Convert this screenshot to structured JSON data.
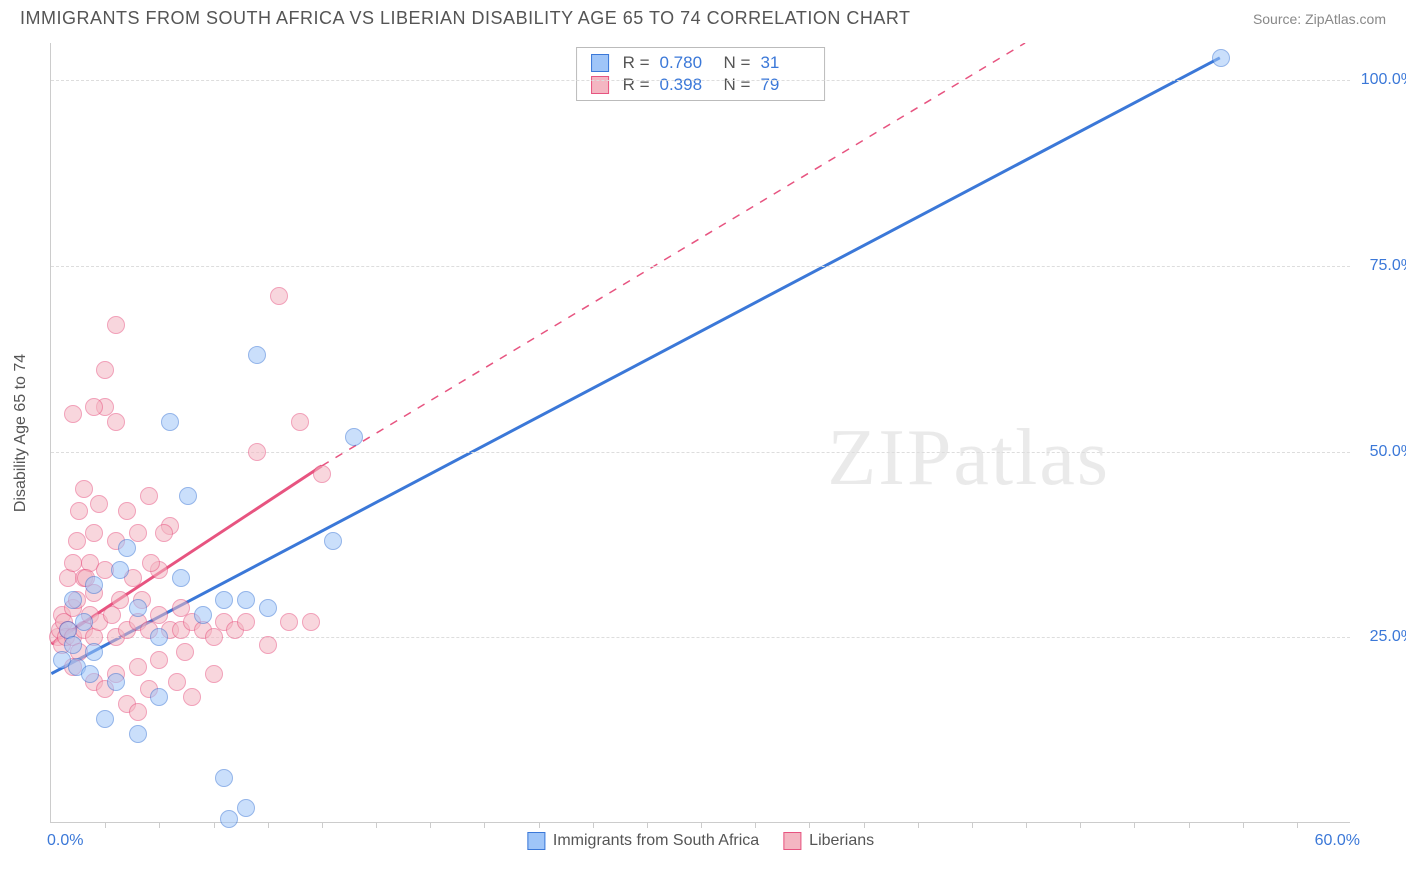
{
  "header": {
    "title": "IMMIGRANTS FROM SOUTH AFRICA VS LIBERIAN DISABILITY AGE 65 TO 74 CORRELATION CHART",
    "source": "Source: ZipAtlas.com"
  },
  "watermark": {
    "part1": "ZIP",
    "part2": "atlas"
  },
  "chart": {
    "type": "scatter",
    "y_axis_title": "Disability Age 65 to 74",
    "x_range": [
      0,
      60
    ],
    "y_range": [
      0,
      105
    ],
    "x_ticks_minor_step": 2.5,
    "y_grid": [
      25,
      50,
      75,
      100
    ],
    "y_tick_labels": [
      "25.0%",
      "50.0%",
      "75.0%",
      "100.0%"
    ],
    "x_origin_label": "0.0%",
    "x_max_label": "60.0%",
    "axis_label_color": "#3b78d8",
    "grid_color": "#dddddd",
    "axis_color": "#cccccc",
    "background_color": "#ffffff",
    "marker_radius": 9,
    "marker_opacity": 0.55,
    "marker_stroke_opacity": 0.9,
    "series": [
      {
        "name": "Immigrants from South Africa",
        "color_fill": "#9fc5f8",
        "color_stroke": "#3b78d8",
        "R": "0.780",
        "N": "31",
        "trend": {
          "x1": 0,
          "y1": 20,
          "x2": 54,
          "y2": 103,
          "dashed": false,
          "width": 3
        },
        "points": [
          [
            0.5,
            22
          ],
          [
            0.8,
            26
          ],
          [
            1,
            30
          ],
          [
            1,
            24
          ],
          [
            1.2,
            21
          ],
          [
            1.5,
            27
          ],
          [
            1.8,
            20
          ],
          [
            2,
            32
          ],
          [
            2,
            23
          ],
          [
            2.5,
            14
          ],
          [
            3,
            19
          ],
          [
            3.2,
            34
          ],
          [
            3.5,
            37
          ],
          [
            4,
            12
          ],
          [
            4,
            29
          ],
          [
            5,
            25
          ],
          [
            5,
            17
          ],
          [
            5.5,
            54
          ],
          [
            6,
            33
          ],
          [
            6.3,
            44
          ],
          [
            7,
            28
          ],
          [
            8,
            6
          ],
          [
            8,
            30
          ],
          [
            8.2,
            0.5
          ],
          [
            9,
            2
          ],
          [
            9,
            30
          ],
          [
            9.5,
            63
          ],
          [
            10,
            29
          ],
          [
            13,
            38
          ],
          [
            14,
            52
          ],
          [
            54,
            103
          ]
        ]
      },
      {
        "name": "Liberians",
        "color_fill": "#f4b6c2",
        "color_stroke": "#e75480",
        "R": "0.398",
        "N": "79",
        "trend": {
          "x1": 0,
          "y1": 24,
          "x2": 12.5,
          "y2": 48,
          "dashed": false,
          "width": 3
        },
        "trend_ext": {
          "x1": 12.5,
          "y1": 48,
          "x2": 45,
          "y2": 105,
          "dashed": true,
          "width": 1.5
        },
        "points": [
          [
            0.3,
            25
          ],
          [
            0.4,
            26
          ],
          [
            0.5,
            24
          ],
          [
            0.5,
            28
          ],
          [
            0.6,
            27
          ],
          [
            0.7,
            25
          ],
          [
            0.8,
            26
          ],
          [
            0.8,
            33
          ],
          [
            1,
            25
          ],
          [
            1,
            29
          ],
          [
            1,
            35
          ],
          [
            1,
            21
          ],
          [
            1.2,
            30
          ],
          [
            1.2,
            38
          ],
          [
            1.3,
            23
          ],
          [
            1.3,
            42
          ],
          [
            1.5,
            26
          ],
          [
            1.5,
            33
          ],
          [
            1.5,
            45
          ],
          [
            1.8,
            28
          ],
          [
            1.8,
            35
          ],
          [
            2,
            25
          ],
          [
            2,
            31
          ],
          [
            2,
            39
          ],
          [
            2,
            19
          ],
          [
            2.2,
            27
          ],
          [
            2.2,
            43
          ],
          [
            2.5,
            34
          ],
          [
            2.5,
            56
          ],
          [
            2.5,
            18
          ],
          [
            2.5,
            61
          ],
          [
            2.8,
            28
          ],
          [
            3,
            25
          ],
          [
            3,
            38
          ],
          [
            3,
            20
          ],
          [
            3,
            67
          ],
          [
            3.2,
            30
          ],
          [
            3.5,
            26
          ],
          [
            3.5,
            42
          ],
          [
            3.5,
            16
          ],
          [
            3.8,
            33
          ],
          [
            4,
            27
          ],
          [
            4,
            39
          ],
          [
            4,
            21
          ],
          [
            4.2,
            30
          ],
          [
            4.5,
            26
          ],
          [
            4.5,
            44
          ],
          [
            4.5,
            18
          ],
          [
            5,
            28
          ],
          [
            5,
            34
          ],
          [
            5,
            22
          ],
          [
            5.5,
            26
          ],
          [
            5.5,
            40
          ],
          [
            5.8,
            19
          ],
          [
            6,
            29
          ],
          [
            6,
            26
          ],
          [
            6.5,
            27
          ],
          [
            6.5,
            17
          ],
          [
            7,
            26
          ],
          [
            7.5,
            25
          ],
          [
            7.5,
            20
          ],
          [
            8,
            27
          ],
          [
            8.5,
            26
          ],
          [
            9,
            27
          ],
          [
            9.5,
            50
          ],
          [
            10,
            24
          ],
          [
            10.5,
            71
          ],
          [
            11,
            27
          ],
          [
            11.5,
            54
          ],
          [
            12,
            27
          ],
          [
            12.5,
            47
          ],
          [
            1,
            55
          ],
          [
            2,
            56
          ],
          [
            1.6,
            33
          ],
          [
            3,
            54
          ],
          [
            4.6,
            35
          ],
          [
            5.2,
            39
          ],
          [
            4,
            15
          ],
          [
            6.2,
            23
          ]
        ]
      }
    ],
    "legend": {
      "items": [
        {
          "label": "Immigrants from South Africa",
          "fill": "#9fc5f8",
          "stroke": "#3b78d8"
        },
        {
          "label": "Liberians",
          "fill": "#f4b6c2",
          "stroke": "#e75480"
        }
      ]
    }
  }
}
